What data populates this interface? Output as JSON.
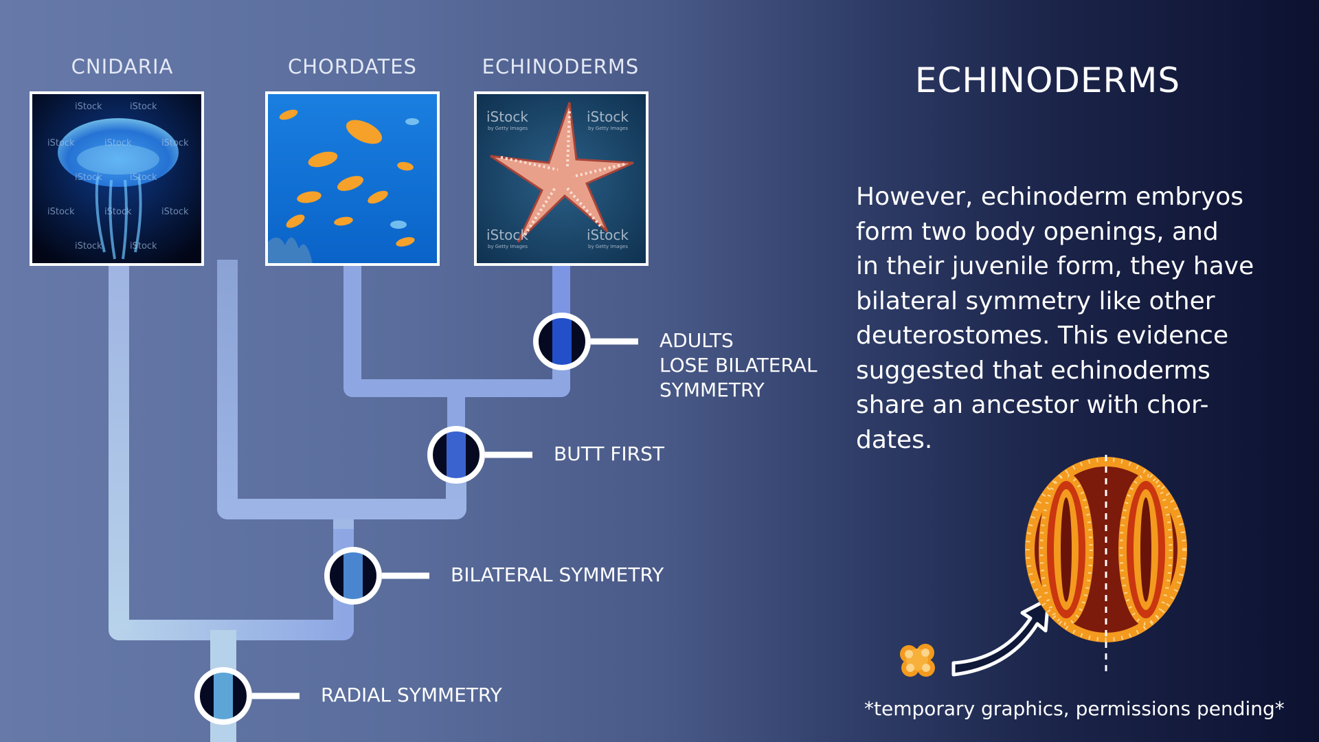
{
  "groups": [
    {
      "label": "CNIDARIA",
      "image": "jellyfish-photo"
    },
    {
      "label": "CHORDATES",
      "image": "fish-photo"
    },
    {
      "label": "ECHINODERMS",
      "image": "starfish-photo"
    }
  ],
  "watermark": "iStock",
  "watermark_sub": "by Getty Images",
  "nodes": [
    {
      "label_lines": [
        "ADULTS",
        "LOSE BILATERAL",
        "SYMMETRY"
      ]
    },
    {
      "label_lines": [
        "BUTT FIRST"
      ]
    },
    {
      "label_lines": [
        "BILATERAL SYMMETRY"
      ]
    },
    {
      "label_lines": [
        "RADIAL SYMMETRY"
      ]
    }
  ],
  "panel": {
    "title": "ECHINODERMS",
    "body": "However, echinoderm embryos form two body openings, and in their juvenile form, they have bilateral symmetry like other deuterostomes. This evidence suggested that echinoderms share an ancestor with chor-dates.",
    "body_lines": [
      "However, echinoderm embryos",
      "form two body openings, and",
      "in their juvenile form, they have",
      "bilateral symmetry like other",
      "deuterostomes. This evidence",
      "suggested that echinoderms",
      "share an ancestor with chor-",
      "dates."
    ],
    "footnote": "*temporary graphics, permissions pending*"
  },
  "colors": {
    "branch_light": "#b5d0ea",
    "branch_mid": "#9cb4e3",
    "branch_blue": "#7f98e4",
    "node_fill": "#050a22",
    "node_stripe": "#2f62d2",
    "node_ring": "#ffffff",
    "embryo_orange": "#f39a1f",
    "embryo_dark": "#7c1a0c"
  }
}
